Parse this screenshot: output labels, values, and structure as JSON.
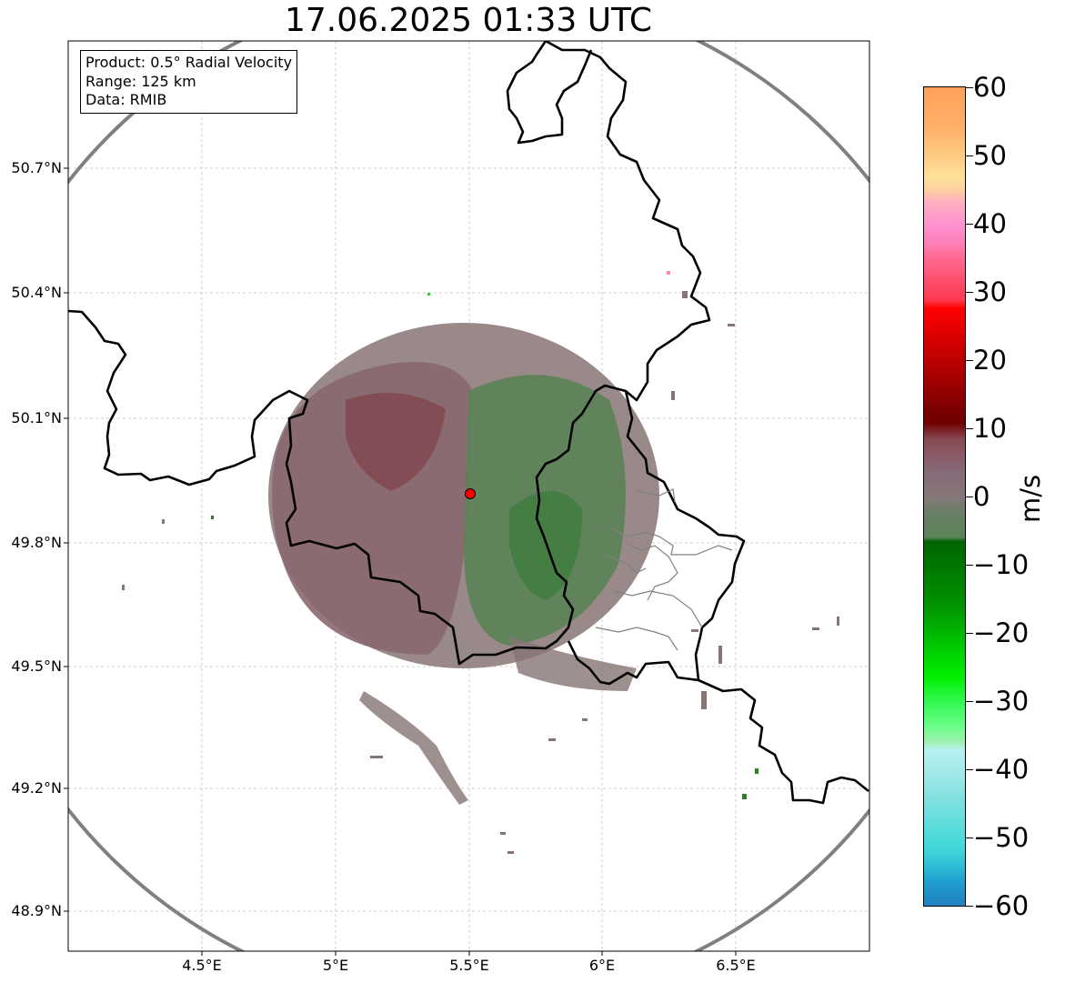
{
  "title": "17.06.2025 01:33 UTC",
  "info_box": {
    "product": "Product: 0.5° Radial Velocity",
    "range": "Range: 125 km",
    "data": "Data: RMIB"
  },
  "axes": {
    "lat_ticks": [
      "50.7°N",
      "50.4°N",
      "50.1°N",
      "49.8°N",
      "49.5°N",
      "49.2°N",
      "48.9°N"
    ],
    "lon_ticks": [
      "4.5°E",
      "5°E",
      "5.5°E",
      "6°E",
      "6.5°E"
    ]
  },
  "colorbar": {
    "unit": "m/s",
    "ticks": [
      "60",
      "50",
      "40",
      "30",
      "20",
      "10",
      "0",
      "−10",
      "−20",
      "−30",
      "−40",
      "−50",
      "−60"
    ],
    "range": [
      -60,
      60
    ]
  },
  "radar_site": {
    "lon": 5.5,
    "lat": 49.914,
    "color": "#ff0000"
  },
  "colors": {
    "range_ring": "#808080",
    "border": "#000000",
    "grid": "#c0c0c0",
    "receding": "#8b0000",
    "approaching": "#2e8b2e",
    "near_zero": "#877474"
  }
}
